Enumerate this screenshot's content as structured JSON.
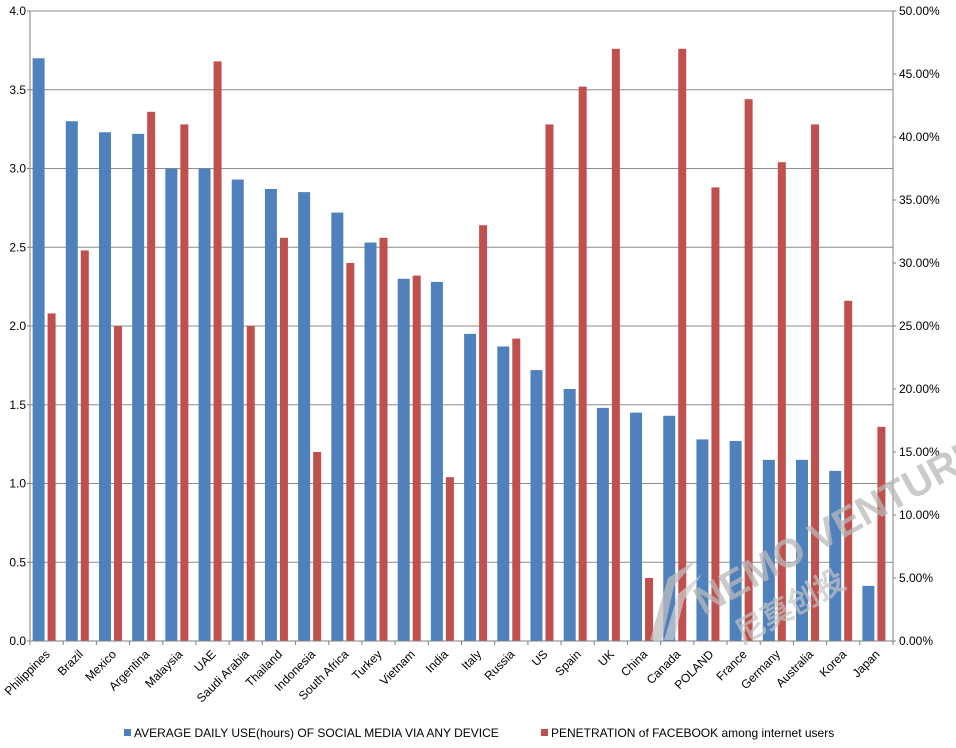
{
  "chart_data": {
    "type": "bar",
    "categories": [
      "Philippines",
      "Brazil",
      "Mexico",
      "Argentina",
      "Malaysia",
      "UAE",
      "Saudi Arabia",
      "Thailand",
      "Indonesia",
      "South Africa",
      "Turkey",
      "Vietnam",
      "India",
      "Italy",
      "Russia",
      "US",
      "Spain",
      "UK",
      "China",
      "Canada",
      "POLAND",
      "France",
      "Germany",
      "Australia",
      "Korea",
      "Japan"
    ],
    "series": [
      {
        "name": "AVERAGE DAILY USE(hours) OF SOCIAL MEDIA VIA ANY DEVICE",
        "axis": "left",
        "color": "#4f81bd",
        "values": [
          3.7,
          3.3,
          3.23,
          3.22,
          3.0,
          3.0,
          2.93,
          2.87,
          2.85,
          2.72,
          2.53,
          2.3,
          2.28,
          1.95,
          1.87,
          1.72,
          1.6,
          1.48,
          1.45,
          1.43,
          1.28,
          1.27,
          1.15,
          1.15,
          1.08,
          0.35
        ]
      },
      {
        "name": "PENETRATION of FACEBOOK among internet users",
        "axis": "right",
        "color": "#c0504d",
        "values": [
          0.26,
          0.31,
          0.25,
          0.42,
          0.41,
          0.46,
          0.25,
          0.32,
          0.15,
          0.3,
          0.32,
          0.29,
          0.13,
          0.33,
          0.24,
          0.41,
          0.44,
          0.47,
          0.05,
          0.47,
          0.36,
          0.43,
          0.38,
          0.41,
          0.27,
          0.17
        ]
      }
    ],
    "y_left": {
      "min": 0,
      "max": 4,
      "step": 0.5,
      "tick_labels": [
        "0.0",
        "0.5",
        "1.0",
        "1.5",
        "2.0",
        "2.5",
        "3.0",
        "3.5",
        "4.0"
      ]
    },
    "y_right": {
      "min": 0,
      "max": 0.5,
      "step": 0.05,
      "tick_labels": [
        "0.00%",
        "5.00%",
        "10.00%",
        "15.00%",
        "20.00%",
        "25.00%",
        "30.00%",
        "35.00%",
        "40.00%",
        "45.00%",
        "50.00%"
      ]
    },
    "grid": true,
    "legend_position": "bottom",
    "legend": [
      {
        "label": "AVERAGE DAILY USE(hours) OF SOCIAL MEDIA VIA ANY DEVICE",
        "color": "#4f81bd"
      },
      {
        "label": "PENETRATION of FACEBOOK among internet users",
        "color": "#c0504d"
      }
    ]
  },
  "watermark": {
    "text": "NEMO VENTURES",
    "subtext": "尼莫创投"
  }
}
